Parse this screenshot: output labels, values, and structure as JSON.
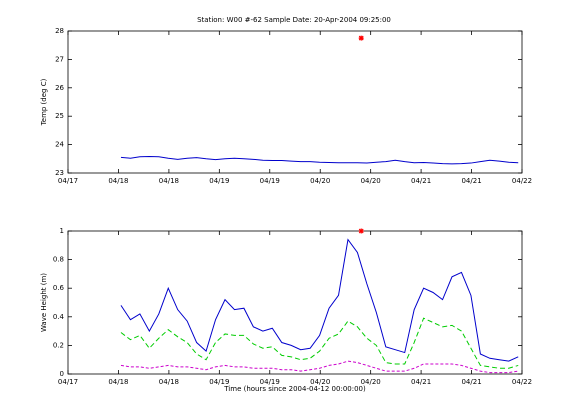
{
  "title": "Station: W00 #-62  Sample Date: 20-Apr-2004 09:25:00",
  "chart_data": [
    {
      "type": "line",
      "ylabel": "Temp (deg C)",
      "x": [
        134,
        136.5,
        139,
        141.5,
        144,
        146.5,
        149,
        151.5,
        154,
        156.5,
        159,
        161.5,
        164,
        166.5,
        169,
        171.5,
        174,
        176.5,
        179,
        181.5,
        184,
        186.5,
        189,
        191.5,
        194,
        196.5,
        199,
        201.5,
        204,
        206.5,
        209,
        211.5,
        214,
        216.5,
        219,
        221.5,
        224,
        226.5,
        229,
        231.5,
        234,
        236.5,
        239
      ],
      "series": [
        {
          "color": "#0000cc",
          "dash": "none",
          "values": [
            23.55,
            23.52,
            23.57,
            23.58,
            23.57,
            23.52,
            23.48,
            23.52,
            23.54,
            23.5,
            23.47,
            23.5,
            23.52,
            23.5,
            23.48,
            23.45,
            23.44,
            23.44,
            23.42,
            23.4,
            23.4,
            23.38,
            23.37,
            23.36,
            23.36,
            23.36,
            23.35,
            23.38,
            23.4,
            23.45,
            23.4,
            23.36,
            23.37,
            23.35,
            23.33,
            23.32,
            23.33,
            23.35,
            23.4,
            23.45,
            23.42,
            23.38,
            23.36
          ]
        }
      ],
      "markers": [
        {
          "x": 197.5,
          "y": 27.75,
          "color": "#ff0000"
        }
      ],
      "xlim": [
        120,
        240
      ],
      "xticks": [
        {
          "value": 120,
          "label": "04/17"
        },
        {
          "value": 133.33,
          "label": "04/18"
        },
        {
          "value": 146.67,
          "label": "04/18"
        },
        {
          "value": 160,
          "label": "04/19"
        },
        {
          "value": 173.33,
          "label": "04/19"
        },
        {
          "value": 186.67,
          "label": "04/20"
        },
        {
          "value": 200,
          "label": "04/20"
        },
        {
          "value": 213.33,
          "label": "04/21"
        },
        {
          "value": 226.67,
          "label": "04/21"
        },
        {
          "value": 240,
          "label": "04/22"
        }
      ],
      "ylim": [
        23,
        28
      ],
      "yticks": [
        23,
        24,
        25,
        26,
        27,
        28
      ]
    },
    {
      "type": "line",
      "ylabel": "Wave Height (m)",
      "xlabel": "Time (hours since 2004-04-12 00:00:00)",
      "x": [
        134,
        136.5,
        139,
        141.5,
        144,
        146.5,
        149,
        151.5,
        154,
        156.5,
        159,
        161.5,
        164,
        166.5,
        169,
        171.5,
        174,
        176.5,
        179,
        181.5,
        184,
        186.5,
        189,
        191.5,
        194,
        196.5,
        199,
        201.5,
        204,
        206.5,
        209,
        211.5,
        214,
        216.5,
        219,
        221.5,
        224,
        226.5,
        229,
        231.5,
        234,
        236.5,
        239
      ],
      "series": [
        {
          "color": "#0000cc",
          "dash": "none",
          "values": [
            0.48,
            0.38,
            0.42,
            0.3,
            0.42,
            0.6,
            0.45,
            0.37,
            0.22,
            0.16,
            0.38,
            0.52,
            0.45,
            0.46,
            0.33,
            0.3,
            0.32,
            0.22,
            0.2,
            0.17,
            0.18,
            0.27,
            0.46,
            0.55,
            0.94,
            0.85,
            0.63,
            0.43,
            0.19,
            0.17,
            0.15,
            0.45,
            0.6,
            0.57,
            0.52,
            0.68,
            0.71,
            0.55,
            0.14,
            0.11,
            0.1,
            0.09,
            0.12
          ]
        },
        {
          "color": "#00cc00",
          "dash": "5 3",
          "values": [
            0.29,
            0.24,
            0.27,
            0.18,
            0.25,
            0.31,
            0.26,
            0.22,
            0.14,
            0.1,
            0.22,
            0.28,
            0.27,
            0.27,
            0.21,
            0.18,
            0.19,
            0.13,
            0.12,
            0.1,
            0.11,
            0.16,
            0.25,
            0.28,
            0.37,
            0.33,
            0.25,
            0.2,
            0.08,
            0.07,
            0.07,
            0.22,
            0.39,
            0.36,
            0.33,
            0.34,
            0.3,
            0.18,
            0.06,
            0.05,
            0.04,
            0.04,
            0.06
          ]
        },
        {
          "color": "#cc00cc",
          "dash": "3 2",
          "values": [
            0.06,
            0.05,
            0.05,
            0.04,
            0.05,
            0.06,
            0.05,
            0.05,
            0.04,
            0.03,
            0.05,
            0.06,
            0.05,
            0.05,
            0.04,
            0.04,
            0.04,
            0.03,
            0.03,
            0.02,
            0.03,
            0.04,
            0.06,
            0.07,
            0.09,
            0.08,
            0.06,
            0.04,
            0.02,
            0.02,
            0.02,
            0.04,
            0.07,
            0.07,
            0.07,
            0.07,
            0.06,
            0.04,
            0.02,
            0.01,
            0.01,
            0.01,
            0.02
          ]
        }
      ],
      "markers": [
        {
          "x": 197.5,
          "y": 1.0,
          "color": "#ff0000"
        }
      ],
      "xlim": [
        120,
        240
      ],
      "xticks": [
        {
          "value": 120,
          "label": "04/17"
        },
        {
          "value": 133.33,
          "label": "04/18"
        },
        {
          "value": 146.67,
          "label": "04/18"
        },
        {
          "value": 160,
          "label": "04/19"
        },
        {
          "value": 173.33,
          "label": "04/19"
        },
        {
          "value": 186.67,
          "label": "04/20"
        },
        {
          "value": 200,
          "label": "04/20"
        },
        {
          "value": 213.33,
          "label": "04/21"
        },
        {
          "value": 226.67,
          "label": "04/21"
        },
        {
          "value": 240,
          "label": "04/22"
        }
      ],
      "ylim": [
        0,
        1
      ],
      "yticks": [
        0,
        0.2,
        0.4,
        0.6,
        0.8,
        1
      ]
    }
  ]
}
